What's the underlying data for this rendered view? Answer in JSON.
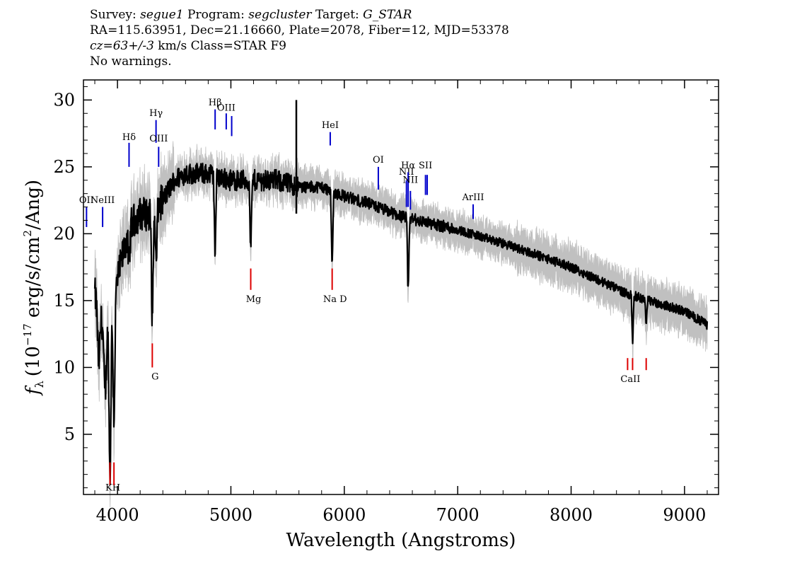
{
  "header": {
    "survey_label": "Survey:",
    "survey": "segue1",
    "program_label": "Program:",
    "program": "segcluster",
    "target_label": "Target:",
    "target": "G_STAR",
    "line2": "RA=115.63951, Dec=21.16660, Plate=2078, Fiber=12, MJD=53378",
    "cz": "cz=63+/-3",
    "line3_rest": "km/s Class=STAR F9",
    "line4": "No warnings."
  },
  "chart_data": {
    "type": "line",
    "xlabel": "Wavelength (Angstroms)",
    "ylabel": "f_λ (10^-17 erg/s/cm^2/Ang)",
    "ylabel_parts": {
      "f": "f",
      "sub": "λ",
      "open": "(10",
      "exp": "−17",
      "mid": " erg/s/cm",
      "exp2": "2",
      "close": "/Ang)"
    },
    "xlim": [
      3700,
      9300
    ],
    "ylim": [
      0.5,
      31.5
    ],
    "xticks": [
      4000,
      5000,
      6000,
      7000,
      8000,
      9000
    ],
    "yticks": [
      5,
      10,
      15,
      20,
      25,
      30
    ],
    "colors": {
      "flux": "#000000",
      "noise": "#c0c0c0",
      "emission": "#0000cc",
      "absorption": "#dd0000"
    },
    "continuum_knots": [
      [
        3800,
        15.5
      ],
      [
        3900,
        12.5
      ],
      [
        4000,
        16.5
      ],
      [
        4100,
        20.5
      ],
      [
        4200,
        21.5
      ],
      [
        4300,
        21.5
      ],
      [
        4400,
        22.5
      ],
      [
        4500,
        24.0
      ],
      [
        4600,
        24.5
      ],
      [
        4800,
        24.5
      ],
      [
        5000,
        24.0
      ],
      [
        5200,
        24.0
      ],
      [
        5400,
        24.0
      ],
      [
        5600,
        23.5
      ],
      [
        5800,
        23.5
      ],
      [
        6000,
        22.8
      ],
      [
        6200,
        22.3
      ],
      [
        6500,
        21.3
      ],
      [
        7000,
        20.3
      ],
      [
        7500,
        19.0
      ],
      [
        8000,
        17.5
      ],
      [
        8500,
        15.5
      ],
      [
        9000,
        14.2
      ],
      [
        9200,
        13.2
      ]
    ],
    "absorption_features": [
      {
        "center": 3934,
        "depth": 12.0,
        "width": 8
      },
      {
        "center": 3969,
        "depth": 9.0,
        "width": 8
      },
      {
        "center": 3890,
        "depth": 5.0,
        "width": 10
      },
      {
        "center": 3835,
        "depth": 4.0,
        "width": 10
      },
      {
        "center": 4102,
        "depth": 3.0,
        "width": 8
      },
      {
        "center": 4307,
        "depth": 8.0,
        "width": 7
      },
      {
        "center": 4340,
        "depth": 4.0,
        "width": 8
      },
      {
        "center": 4861,
        "depth": 6.0,
        "width": 6
      },
      {
        "center": 5175,
        "depth": 5.0,
        "width": 7
      },
      {
        "center": 5893,
        "depth": 5.5,
        "width": 6
      },
      {
        "center": 6563,
        "depth": 5.5,
        "width": 6
      },
      {
        "center": 8542,
        "depth": 3.5,
        "width": 5
      },
      {
        "center": 8662,
        "depth": 2.0,
        "width": 5
      }
    ],
    "spikes": [
      {
        "x": 5577,
        "top": 30.0,
        "bottom": 21.5
      }
    ],
    "emission_lines": [
      {
        "label": "OII",
        "x": 3727,
        "y_low": 20.5,
        "y_high": 22.0,
        "label_y": 22.3
      },
      {
        "label": "NeIII",
        "x": 3869,
        "y_low": 20.5,
        "y_high": 22.0,
        "label_y": 22.3
      },
      {
        "label": "Hδ",
        "x": 4102,
        "y_low": 25.0,
        "y_high": 26.8,
        "label_y": 27.0
      },
      {
        "label": "Hγ",
        "x": 4340,
        "y_low": 26.8,
        "y_high": 28.5,
        "label_y": 28.8
      },
      {
        "label": "OIII",
        "x": 4363,
        "y_low": 25.0,
        "y_high": 26.5,
        "label_y": 26.9
      },
      {
        "label": "Hβ",
        "x": 4861,
        "y_low": 27.8,
        "y_high": 29.3,
        "label_y": 29.6
      },
      {
        "label": "OIII",
        "x": 4959,
        "y_low": 27.8,
        "y_high": 29.0,
        "label_y": 29.2
      },
      {
        "label": "",
        "x": 5007,
        "y_low": 27.3,
        "y_high": 28.8,
        "label_y": 29.2
      },
      {
        "label": "HeI",
        "x": 5876,
        "y_low": 26.6,
        "y_high": 27.6,
        "label_y": 27.9
      },
      {
        "label": "OI",
        "x": 6300,
        "y_low": 23.3,
        "y_high": 25.0,
        "label_y": 25.3
      },
      {
        "label": "NII",
        "x": 6548,
        "y_low": 22.0,
        "y_high": 24.0,
        "label_y": 24.4
      },
      {
        "label": "Hα",
        "x": 6563,
        "y_low": 22.0,
        "y_high": 24.6,
        "label_y": 24.9
      },
      {
        "label": "NII",
        "x": 6583,
        "y_low": 21.8,
        "y_high": 23.2,
        "label_y": 23.8
      },
      {
        "label": "SII",
        "x": 6716,
        "y_low": 22.9,
        "y_high": 24.4,
        "label_y": 24.9
      },
      {
        "label": "",
        "x": 6731,
        "y_low": 22.9,
        "y_high": 24.4,
        "label_y": 24.9
      },
      {
        "label": "ArIII",
        "x": 7136,
        "y_low": 21.1,
        "y_high": 22.2,
        "label_y": 22.5
      }
    ],
    "absorption_lines": [
      {
        "label": "KH",
        "x": 3934,
        "y_low": 1.2,
        "y_high": 2.9,
        "label_y": 0.8
      },
      {
        "label": "",
        "x": 3969,
        "y_low": 1.2,
        "y_high": 2.9,
        "label_y": 0.8
      },
      {
        "label": "G",
        "x": 4307,
        "y_low": 10.0,
        "y_high": 11.8,
        "label_y": 9.1
      },
      {
        "label": "Mg",
        "x": 5175,
        "y_low": 15.8,
        "y_high": 17.4,
        "label_y": 14.9
      },
      {
        "label": "Na D",
        "x": 5893,
        "y_low": 15.8,
        "y_high": 17.4,
        "label_y": 14.9
      },
      {
        "label": "CaII",
        "x": 8498,
        "y_low": 9.8,
        "y_high": 10.7,
        "label_y": 8.9
      },
      {
        "label": "",
        "x": 8542,
        "y_low": 9.8,
        "y_high": 10.7,
        "label_y": 8.9
      },
      {
        "label": "",
        "x": 8662,
        "y_low": 9.8,
        "y_high": 10.7,
        "label_y": 8.9
      }
    ]
  }
}
